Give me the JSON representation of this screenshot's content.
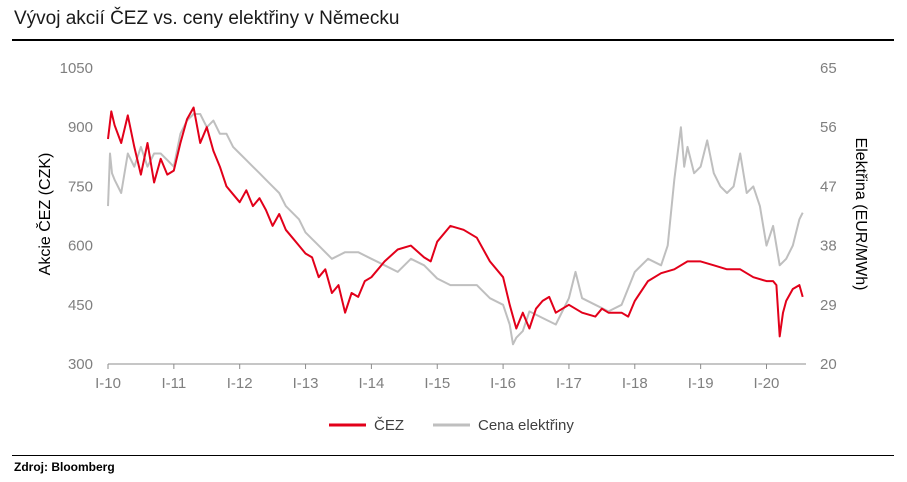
{
  "title": "Vývoj akcií ČEZ vs. ceny elektřiny v Německu",
  "source": "Zdroj: Bloomberg",
  "chart_data": {
    "type": "line",
    "title": "Vývoj akcií ČEZ vs. ceny elektřiny v Německu",
    "x_ticks": [
      "I-10",
      "I-11",
      "I-12",
      "I-13",
      "I-14",
      "I-15",
      "I-16",
      "I-17",
      "I-18",
      "I-19",
      "I-20"
    ],
    "xlim": [
      2010.0,
      2020.6
    ],
    "y_left": {
      "label": "Akcie ČEZ (CZK)",
      "ticks": [
        300,
        450,
        600,
        750,
        900,
        1050
      ],
      "range": [
        300,
        1050
      ]
    },
    "y_right": {
      "label": "Elektřina (EUR/MWh)",
      "ticks": [
        20,
        29,
        38,
        47,
        56,
        65
      ],
      "range": [
        20,
        65
      ]
    },
    "legend_position": "bottom",
    "grid": false,
    "series": [
      {
        "name": "ČEZ",
        "axis": "left",
        "color": "#e2001a",
        "x": [
          2010.0,
          2010.05,
          2010.1,
          2010.2,
          2010.3,
          2010.4,
          2010.5,
          2010.6,
          2010.7,
          2010.8,
          2010.9,
          2011.0,
          2011.1,
          2011.2,
          2011.3,
          2011.4,
          2011.5,
          2011.6,
          2011.7,
          2011.8,
          2011.9,
          2012.0,
          2012.1,
          2012.2,
          2012.3,
          2012.4,
          2012.5,
          2012.6,
          2012.7,
          2012.8,
          2012.9,
          2013.0,
          2013.1,
          2013.2,
          2013.3,
          2013.4,
          2013.5,
          2013.6,
          2013.7,
          2013.8,
          2013.9,
          2014.0,
          2014.2,
          2014.4,
          2014.6,
          2014.8,
          2014.9,
          2015.0,
          2015.2,
          2015.4,
          2015.6,
          2015.8,
          2016.0,
          2016.1,
          2016.2,
          2016.3,
          2016.4,
          2016.5,
          2016.6,
          2016.7,
          2016.8,
          2016.9,
          2017.0,
          2017.2,
          2017.4,
          2017.5,
          2017.6,
          2017.8,
          2017.9,
          2018.0,
          2018.2,
          2018.4,
          2018.6,
          2018.8,
          2019.0,
          2019.2,
          2019.4,
          2019.6,
          2019.8,
          2020.0,
          2020.1,
          2020.15,
          2020.2,
          2020.25,
          2020.3,
          2020.4,
          2020.5,
          2020.55
        ],
        "values": [
          870,
          940,
          905,
          860,
          930,
          850,
          780,
          860,
          760,
          820,
          780,
          790,
          860,
          920,
          950,
          860,
          900,
          840,
          800,
          750,
          730,
          710,
          740,
          700,
          720,
          690,
          650,
          680,
          640,
          620,
          600,
          580,
          570,
          520,
          540,
          480,
          500,
          430,
          480,
          470,
          510,
          520,
          560,
          590,
          600,
          570,
          560,
          610,
          650,
          640,
          620,
          560,
          520,
          450,
          390,
          430,
          390,
          440,
          460,
          470,
          430,
          440,
          450,
          430,
          420,
          440,
          430,
          430,
          420,
          460,
          510,
          530,
          540,
          560,
          560,
          550,
          540,
          540,
          520,
          510,
          510,
          500,
          370,
          430,
          460,
          490,
          500,
          470
        ]
      },
      {
        "name": "Cena elektřiny",
        "axis": "right",
        "color": "#bfbfbf",
        "x": [
          2010.0,
          2010.03,
          2010.06,
          2010.1,
          2010.2,
          2010.3,
          2010.4,
          2010.5,
          2010.6,
          2010.7,
          2010.8,
          2010.9,
          2011.0,
          2011.1,
          2011.2,
          2011.3,
          2011.4,
          2011.5,
          2011.6,
          2011.7,
          2011.8,
          2011.9,
          2012.0,
          2012.1,
          2012.2,
          2012.3,
          2012.4,
          2012.5,
          2012.6,
          2012.7,
          2012.8,
          2012.9,
          2013.0,
          2013.2,
          2013.4,
          2013.6,
          2013.8,
          2014.0,
          2014.2,
          2014.4,
          2014.6,
          2014.8,
          2015.0,
          2015.2,
          2015.4,
          2015.6,
          2015.8,
          2016.0,
          2016.1,
          2016.15,
          2016.2,
          2016.3,
          2016.4,
          2016.6,
          2016.8,
          2017.0,
          2017.1,
          2017.2,
          2017.4,
          2017.6,
          2017.8,
          2018.0,
          2018.2,
          2018.4,
          2018.5,
          2018.6,
          2018.7,
          2018.75,
          2018.8,
          2018.9,
          2019.0,
          2019.1,
          2019.2,
          2019.3,
          2019.4,
          2019.5,
          2019.6,
          2019.7,
          2019.8,
          2019.9,
          2020.0,
          2020.1,
          2020.2,
          2020.3,
          2020.4,
          2020.5,
          2020.55
        ],
        "values": [
          44,
          52,
          49,
          48,
          46,
          52,
          50,
          53,
          50,
          52,
          52,
          51,
          50,
          55,
          57,
          58,
          58,
          56,
          57,
          55,
          55,
          53,
          52,
          51,
          50,
          49,
          48,
          47,
          46,
          44,
          43,
          42,
          40,
          38,
          36,
          37,
          37,
          36,
          35,
          34,
          36,
          35,
          33,
          32,
          32,
          32,
          30,
          29,
          26,
          23,
          24,
          25,
          28,
          27,
          26,
          30,
          34,
          30,
          29,
          28,
          29,
          34,
          36,
          35,
          38,
          48,
          56,
          50,
          53,
          49,
          50,
          54,
          49,
          47,
          46,
          47,
          52,
          46,
          47,
          44,
          38,
          41,
          35,
          36,
          38,
          42,
          43
        ]
      }
    ]
  }
}
